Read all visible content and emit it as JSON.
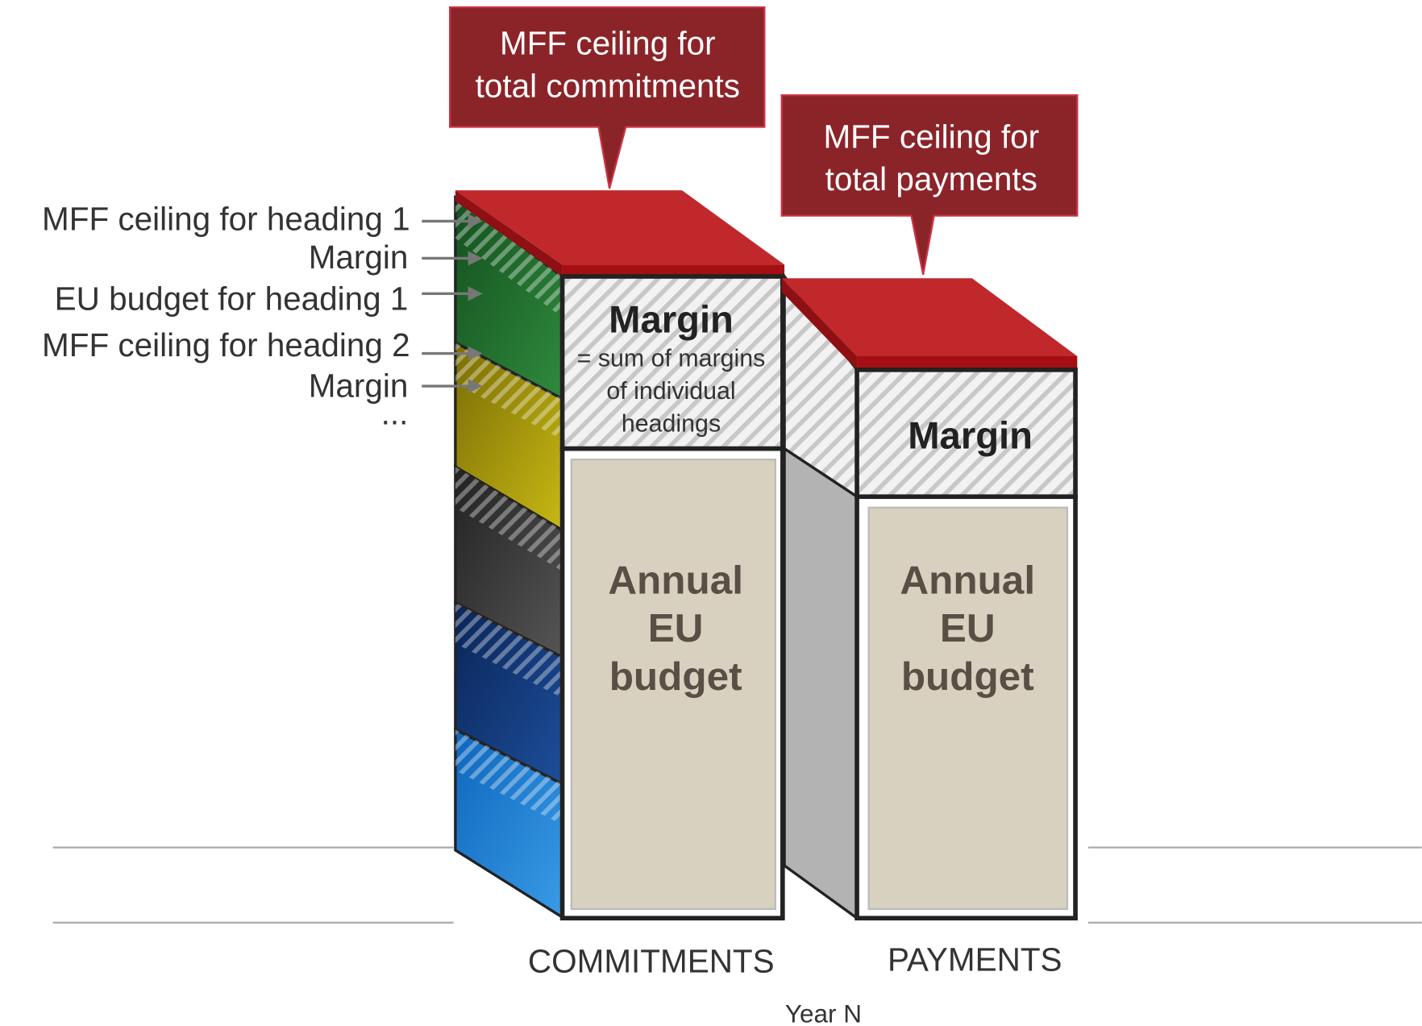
{
  "callouts": [
    {
      "lines": [
        "MFF ceiling for",
        "total commitments"
      ]
    },
    {
      "lines": [
        "MFF ceiling for",
        "total payments"
      ]
    }
  ],
  "left_labels": [
    "MFF ceiling for heading 1",
    "Margin",
    "EU budget for heading 1",
    "MFF ceiling for heading 2",
    "Margin",
    "..."
  ],
  "columns": [
    {
      "label": "COMMITMENTS",
      "margin_title": "Margin",
      "margin_note": [
        "= sum of margins",
        "of individual",
        "headings"
      ],
      "body": [
        "Annual",
        "EU",
        "budget"
      ]
    },
    {
      "label": "PAYMENTS",
      "margin_title": "Margin",
      "body": [
        "Annual",
        "EU",
        "budget"
      ]
    }
  ],
  "x_label": "Year N"
}
